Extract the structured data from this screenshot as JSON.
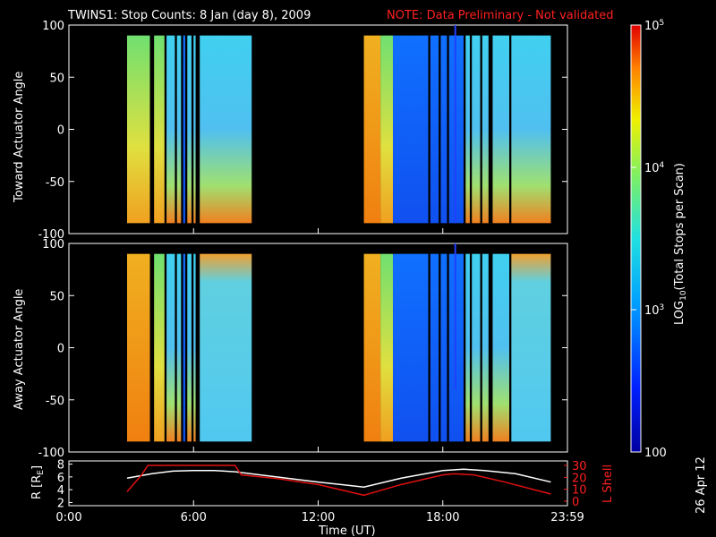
{
  "title": {
    "main": "TWINS1: Stop Counts:  8 Jan (day   8), 2009",
    "note": "NOTE: Data Preliminary - Not validated"
  },
  "stamp": "26 Apr 12",
  "colors": {
    "note": "#ff2020",
    "r_line": "#ffffff",
    "lshell_line": "#e01010"
  },
  "chart_data": [
    {
      "type": "heatmap",
      "panel": "toward",
      "ylabel": "Toward Actuator Angle",
      "ylim": [
        -100,
        100
      ],
      "yticks": [
        "100",
        "50",
        "0",
        "-50",
        "-100"
      ],
      "xlim_hours": [
        0,
        24
      ],
      "x_data_coverage_hours": [
        [
          2.8,
          8.8
        ],
        [
          14.2,
          23.2
        ]
      ],
      "colorscale": "log",
      "zlim": [
        100,
        100000
      ]
    },
    {
      "type": "heatmap",
      "panel": "away",
      "ylabel": "Away Actuator Angle",
      "ylim": [
        -100,
        100
      ],
      "yticks": [
        "100",
        "50",
        "0",
        "-50",
        "-100"
      ],
      "xlim_hours": [
        0,
        24
      ],
      "x_data_coverage_hours": [
        [
          2.8,
          8.8
        ],
        [
          14.2,
          23.2
        ]
      ],
      "colorscale": "log",
      "zlim": [
        100,
        100000
      ]
    },
    {
      "type": "line",
      "panel": "orbit",
      "xlabel": "Time (UT)",
      "xticks": [
        "0:00",
        "6:00",
        "12:00",
        "18:00",
        "23:59"
      ],
      "xlim_hours": [
        0,
        24
      ],
      "left_axis": {
        "label_main": "R [R",
        "label_sub": "E",
        "label_end": "]",
        "ylim": [
          1.5,
          8.5
        ],
        "ticks": [
          "8",
          "6",
          "4",
          "2"
        ]
      },
      "right_axis": {
        "label": "L Shell",
        "ylim": [
          0,
          30
        ],
        "ticks": [
          "30",
          "20",
          "10",
          "0"
        ]
      },
      "series": [
        {
          "axis": "left",
          "x": [
            2.8,
            4.0,
            5.0,
            6.0,
            7.0,
            8.0,
            10.0,
            12.0,
            14.2,
            16.0,
            18.0,
            19.0,
            20.0,
            21.5,
            23.2
          ],
          "values": [
            5.8,
            6.5,
            6.9,
            7.0,
            7.0,
            6.8,
            6.0,
            5.2,
            4.4,
            5.8,
            7.0,
            7.2,
            7.0,
            6.5,
            5.2
          ]
        },
        {
          "axis": "right",
          "x": [
            2.8,
            3.5,
            3.8,
            8.0,
            8.3,
            10.0,
            12.0,
            14.2,
            16.0,
            18.0,
            18.5,
            19.5,
            21.0,
            23.2
          ],
          "values": [
            8,
            22,
            30,
            30,
            22,
            19,
            14,
            5,
            14,
            22,
            23,
            22,
            16,
            6
          ]
        }
      ]
    }
  ],
  "colorbar": {
    "label_prefix": "LOG",
    "label_sub": "10",
    "label_suffix": "(Total Stops per Scan)",
    "ticks": [
      {
        "base": "10",
        "exp": "5",
        "value": 100000
      },
      {
        "base": "10",
        "exp": "4",
        "value": 10000
      },
      {
        "base": "10",
        "exp": "3",
        "value": 1000
      },
      {
        "base": "100",
        "exp": "",
        "value": 100
      }
    ]
  }
}
